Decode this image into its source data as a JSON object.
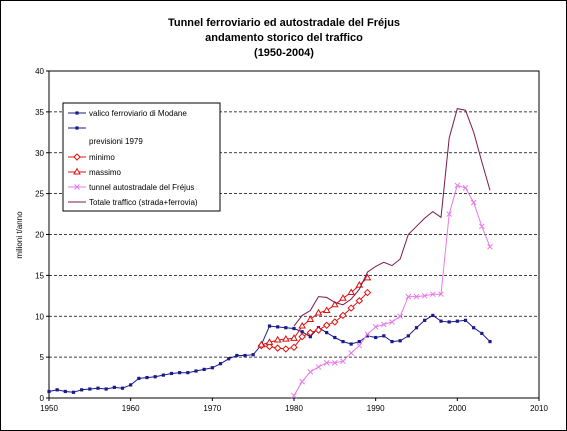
{
  "chart_data": {
    "type": "line",
    "title": [
      "Tunnel ferroviario ed autostradale del Fréjus",
      "andamento storico del traffico",
      "(1950-2004)"
    ],
    "xlabel": "",
    "ylabel": "milioni t/anno",
    "xlim": [
      1950,
      2010
    ],
    "ylim": [
      0,
      40
    ],
    "xticks": [
      1950,
      1960,
      1970,
      1980,
      1990,
      2000,
      2010
    ],
    "yticks": [
      0,
      5,
      10,
      15,
      20,
      25,
      30,
      35,
      40
    ],
    "grid": "horizontal dashed",
    "legend_placement": "top-left inside",
    "legend_labels": [
      "valico ferroviario di Modane",
      "",
      "previsioni 1979",
      "minimo",
      "massimo",
      "tunnel autostradale del Fréjus",
      "Totale traffico (strada+ferrovia)"
    ],
    "series": [
      {
        "name": "valico ferroviario di Modane",
        "color": "#1a1a8c",
        "marker": "square",
        "x": [
          1950,
          1951,
          1952,
          1953,
          1954,
          1955,
          1956,
          1957,
          1958,
          1959,
          1960,
          1961,
          1962,
          1963,
          1964,
          1965,
          1966,
          1967,
          1968,
          1969,
          1970,
          1971,
          1972,
          1973,
          1974,
          1975,
          1976,
          1977,
          1978,
          1979,
          1980,
          1981,
          1982,
          1983,
          1984,
          1985,
          1986,
          1987,
          1988,
          1989,
          1990,
          1991,
          1992,
          1993,
          1994,
          1995,
          1996,
          1997,
          1998,
          1999,
          2000,
          2001,
          2002,
          2003,
          2004
        ],
        "y": [
          0.8,
          1.0,
          0.8,
          0.7,
          1.0,
          1.1,
          1.2,
          1.1,
          1.3,
          1.2,
          1.6,
          2.4,
          2.5,
          2.6,
          2.8,
          3.0,
          3.1,
          3.1,
          3.3,
          3.5,
          3.7,
          4.2,
          4.8,
          5.2,
          5.2,
          5.3,
          6.5,
          8.8,
          8.7,
          8.6,
          8.5,
          8.1,
          7.5,
          8.6,
          8.0,
          7.4,
          6.9,
          6.6,
          6.9,
          7.6,
          7.4,
          7.6,
          6.9,
          7.0,
          7.6,
          8.6,
          9.5,
          10.1,
          9.4,
          9.3,
          9.4,
          9.5,
          8.6,
          7.9,
          6.9
        ]
      },
      {
        "name": "minimo",
        "color": "#e01010",
        "marker": "diamond",
        "x": [
          1976,
          1977,
          1978,
          1979,
          1980,
          1981,
          1982,
          1983,
          1984,
          1985,
          1986,
          1987,
          1988,
          1989
        ],
        "y": [
          6.4,
          6.3,
          6.1,
          6.0,
          6.2,
          7.5,
          8.0,
          8.3,
          8.9,
          9.3,
          10.1,
          11.0,
          11.9,
          12.9
        ]
      },
      {
        "name": "massimo",
        "color": "#e01010",
        "marker": "triangle",
        "x": [
          1976,
          1977,
          1978,
          1979,
          1980,
          1981,
          1982,
          1983,
          1984,
          1985,
          1986,
          1987,
          1988,
          1989
        ],
        "y": [
          6.5,
          6.8,
          7.1,
          7.2,
          7.3,
          8.8,
          9.6,
          10.4,
          10.7,
          11.4,
          12.2,
          12.9,
          13.8,
          14.7
        ]
      },
      {
        "name": "tunnel autostradale del Fréjus",
        "color": "#e87ae8",
        "marker": "x",
        "x": [
          1980,
          1981,
          1982,
          1983,
          1984,
          1985,
          1986,
          1987,
          1988,
          1989,
          1990,
          1991,
          1992,
          1993,
          1994,
          1995,
          1996,
          1997,
          1998,
          1999,
          2000,
          2001,
          2002,
          2003,
          2004
        ],
        "y": [
          0.3,
          2.0,
          3.2,
          3.8,
          4.3,
          4.3,
          4.5,
          5.5,
          6.4,
          7.8,
          8.7,
          9.0,
          9.3,
          10.0,
          12.4,
          12.4,
          12.5,
          12.7,
          12.7,
          22.5,
          26.0,
          25.7,
          23.9,
          21.0,
          18.5
        ]
      },
      {
        "name": "Totale traffico (strada+ferrovia)",
        "color": "#7a1a4a",
        "marker": "none",
        "x": [
          1980,
          1981,
          1982,
          1983,
          1984,
          1985,
          1986,
          1987,
          1988,
          1989,
          1990,
          1991,
          1992,
          1993,
          1994,
          1995,
          1996,
          1997,
          1998,
          1999,
          2000,
          2001,
          2002,
          2003,
          2004
        ],
        "y": [
          8.8,
          10.1,
          10.7,
          12.4,
          12.3,
          11.7,
          11.4,
          12.1,
          13.3,
          15.4,
          16.1,
          16.6,
          16.2,
          17.0,
          20.0,
          21.0,
          22.0,
          22.8,
          22.1,
          31.8,
          35.4,
          35.2,
          32.5,
          28.9,
          25.4
        ]
      }
    ]
  }
}
